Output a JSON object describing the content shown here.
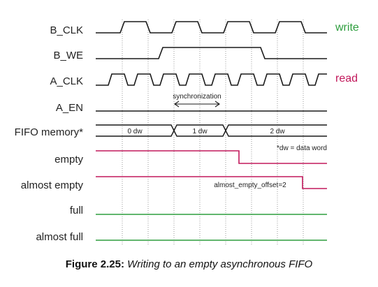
{
  "signals": [
    {
      "id": "b_clk",
      "label": "B_CLK"
    },
    {
      "id": "b_we",
      "label": "B_WE"
    },
    {
      "id": "a_clk",
      "label": "A_CLK"
    },
    {
      "id": "a_en",
      "label": "A_EN"
    },
    {
      "id": "fifo",
      "label": "FIFO memory*"
    },
    {
      "id": "empty",
      "label": "empty"
    },
    {
      "id": "almost_empty",
      "label": "almost empty"
    },
    {
      "id": "full",
      "label": "full"
    },
    {
      "id": "almost_full",
      "label": "almost full"
    }
  ],
  "side_labels": {
    "write": "write",
    "read": "read"
  },
  "annotations": {
    "synchronization": "synchronization",
    "dw_note": "*dw = data word",
    "offset": "almost_empty_offset=2"
  },
  "fifo_segments": [
    "0 dw",
    "1 dw",
    "2 dw"
  ],
  "caption": {
    "figure": "Figure 2.25:",
    "text": "Writing to an empty asynchronous FIFO"
  },
  "colors": {
    "line": "#1a1a1a",
    "write": "#2e9e3e",
    "read": "#c2185b",
    "full_line": "#2e9e3e",
    "empty_line": "#c2185b",
    "grid": "#9a9a9a"
  }
}
